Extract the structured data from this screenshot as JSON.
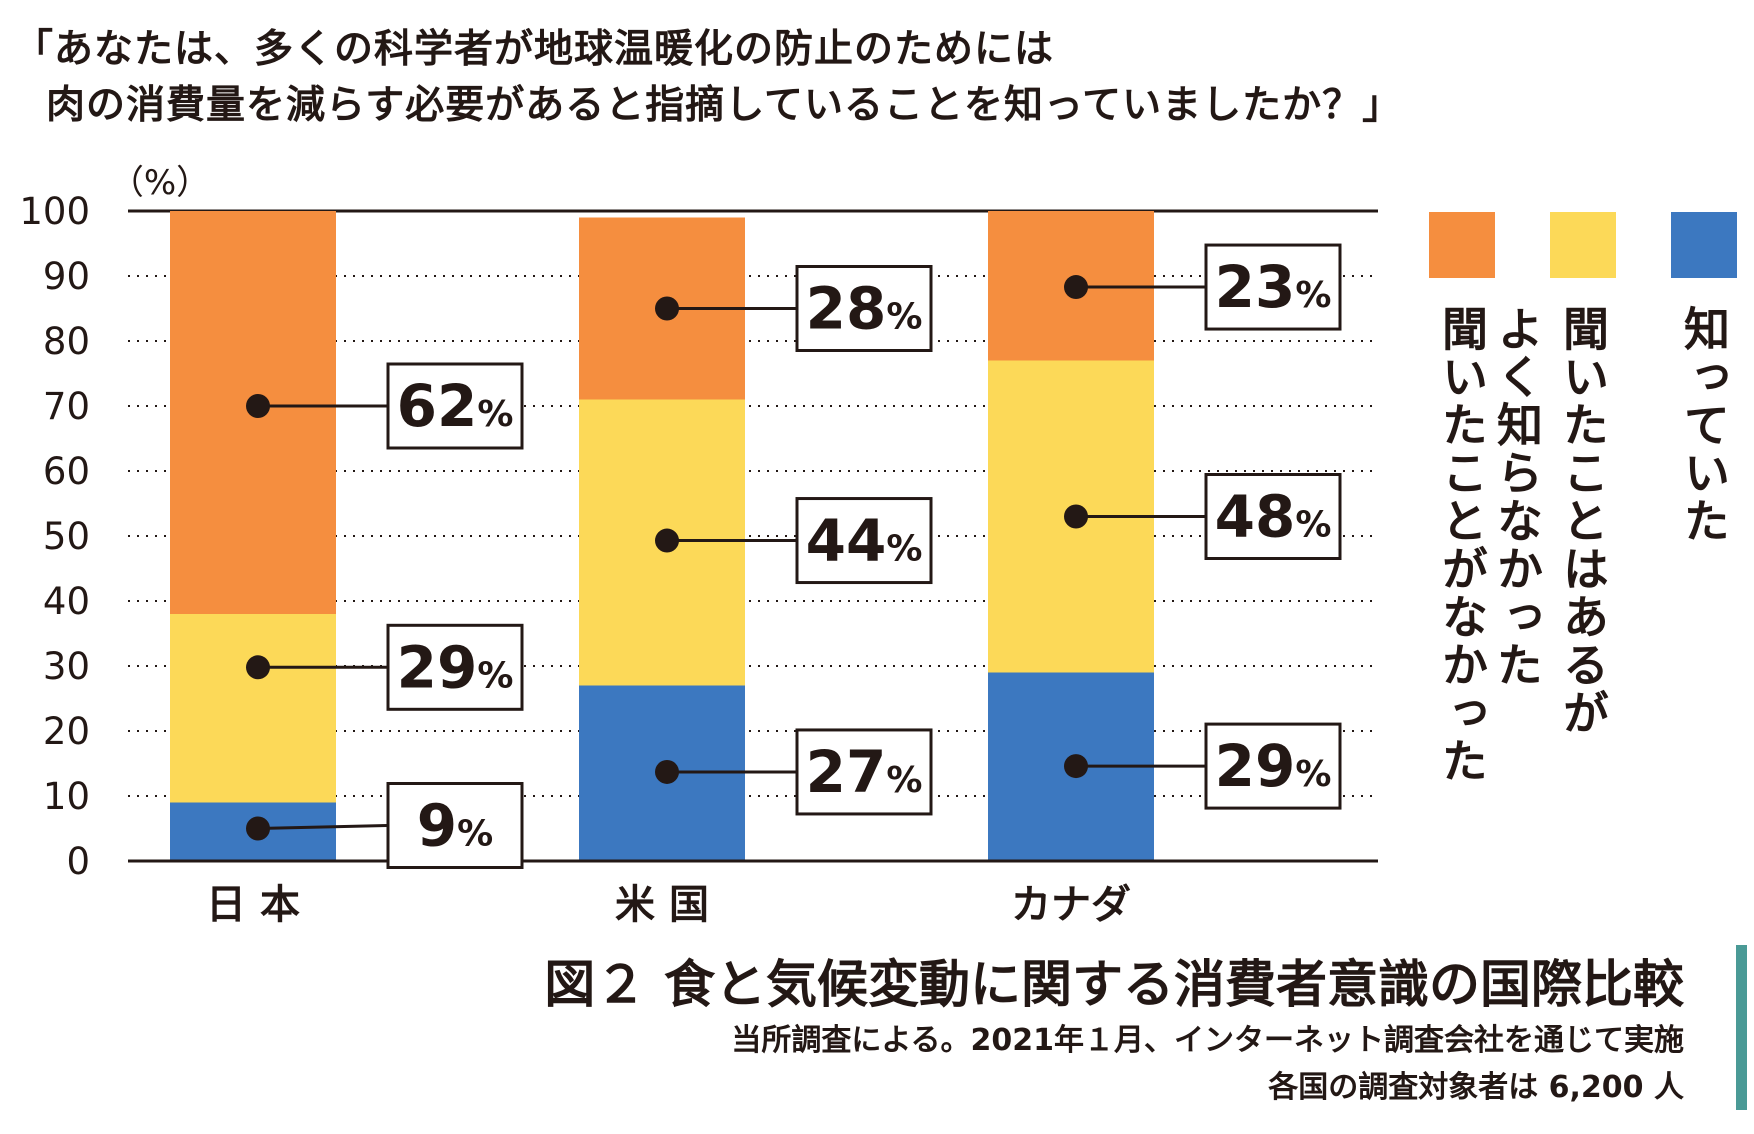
{
  "question": {
    "line1": "「あなたは、多くの科学者が地球温暖化の防止のためには",
    "line2": "肉の消費量を減らす必要があると指摘していることを知っていましたか？」"
  },
  "chart_data": {
    "type": "bar",
    "stacked": true,
    "ylabel": "（%）",
    "ylim": [
      0,
      100
    ],
    "yticks": [
      "0",
      "10",
      "20",
      "30",
      "40",
      "50",
      "60",
      "70",
      "80",
      "90",
      "100"
    ],
    "grid": true,
    "categories": [
      "日 本",
      "米 国",
      "カナダ"
    ],
    "series": [
      {
        "name": "知っていた",
        "color": "#3C78C0",
        "values": [
          9,
          27,
          29
        ],
        "labels": [
          "9",
          "27",
          "29"
        ]
      },
      {
        "name": "聞いたことはあるがよく知らなかった",
        "color": "#FCD958",
        "values": [
          29,
          44,
          48
        ],
        "labels": [
          "29",
          "44",
          "48"
        ]
      },
      {
        "name": "聞いたことがなかった",
        "color": "#F58E3F",
        "values": [
          62,
          28,
          23
        ],
        "labels": [
          "62",
          "28",
          "23"
        ]
      }
    ],
    "unit_suffix": "%",
    "legend_position": "right"
  },
  "legend": {
    "items": [
      {
        "label": "聞いたことがなかった",
        "color": "#F58E3F"
      },
      {
        "label": "聞いたことはあるがよく知らなかった",
        "color": "#FCD958"
      },
      {
        "label": "知っていた",
        "color": "#3C78C0"
      }
    ]
  },
  "caption": {
    "title": "図２ 食と気候変動に関する消費者意識の国際比較",
    "note1": "当所調査による。2021年１月、インターネット調査会社を通じて実施",
    "note2": "各国の調査対象者は 6,200 人",
    "accent_color": "#4A9A96"
  }
}
